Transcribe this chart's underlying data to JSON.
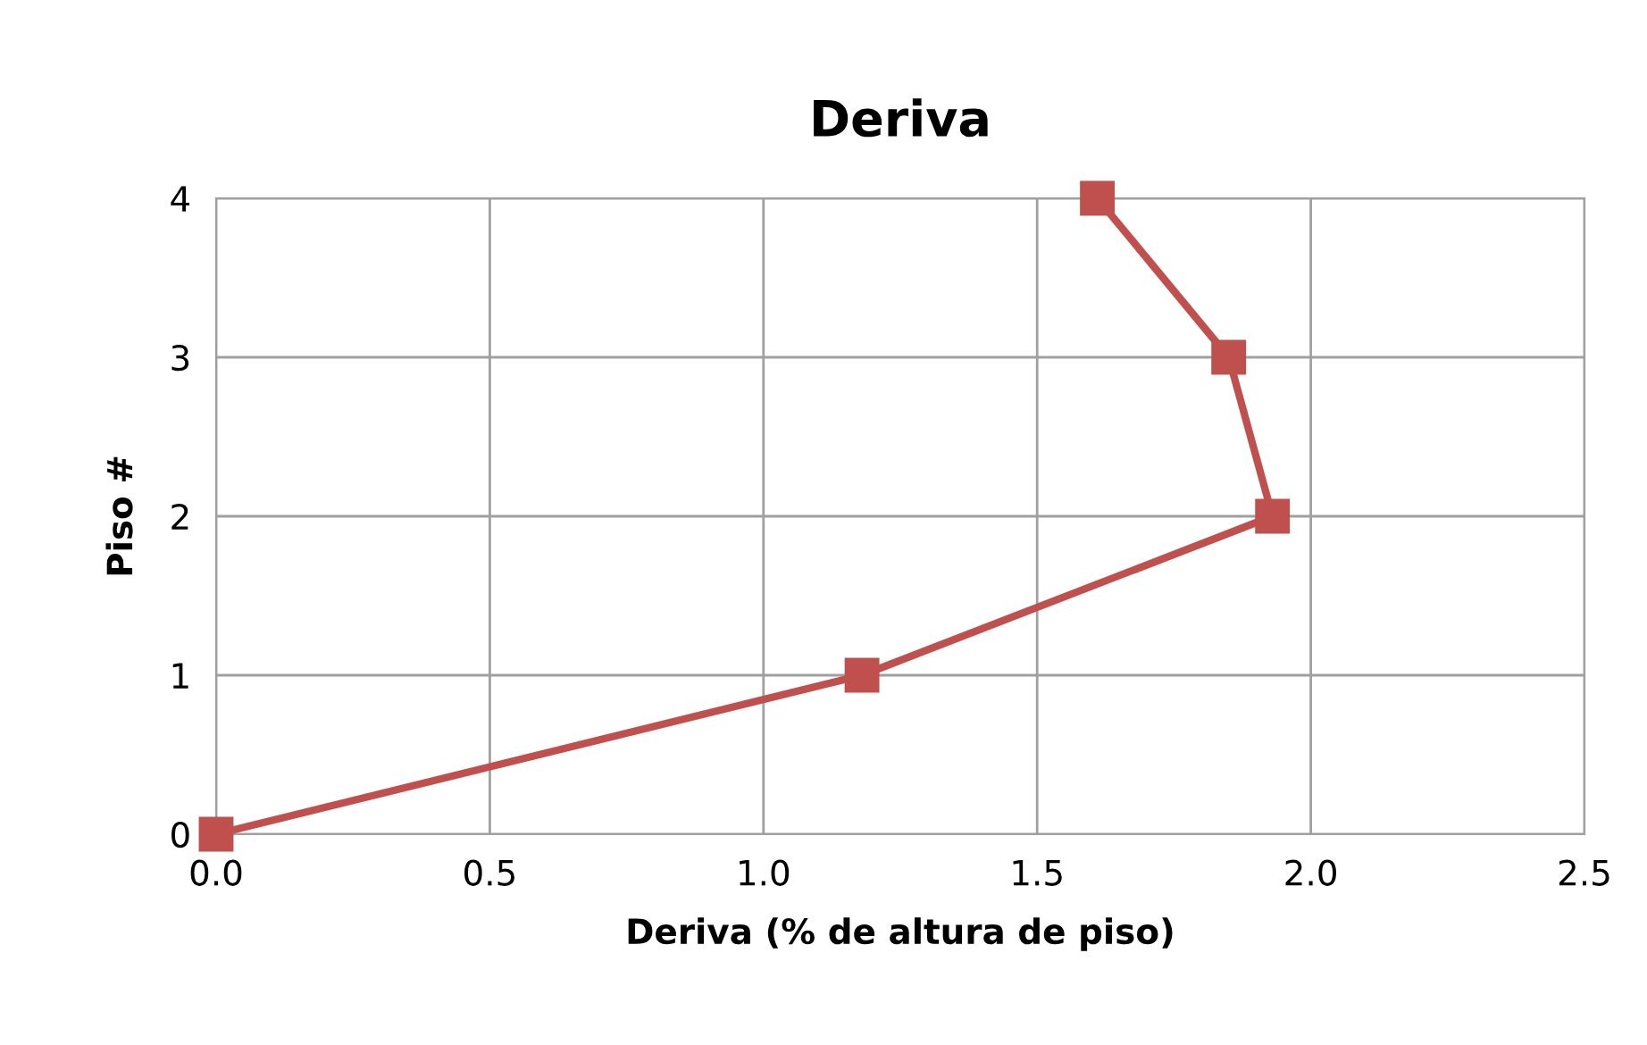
{
  "chart_data": {
    "type": "line",
    "title": "Deriva",
    "xlabel": "Deriva (% de altura de piso)",
    "ylabel": "Piso #",
    "x": [
      0.0,
      1.18,
      1.93,
      1.85,
      1.61
    ],
    "series": [
      {
        "color": "#c0504d",
        "values": [
          0,
          1,
          2,
          3,
          4
        ]
      }
    ],
    "xlim": [
      0,
      2.5
    ],
    "xticks": [
      {
        "value": 0,
        "label": "0.0"
      },
      0.5,
      {
        "value": 1,
        "label": "1.0"
      },
      1.5,
      {
        "value": 2,
        "label": "2.0"
      },
      2.5
    ],
    "ylim": [
      0,
      4
    ],
    "yticks": [
      0,
      1,
      2,
      3,
      4
    ],
    "grid": true,
    "marker": "square",
    "line_style": "solid"
  }
}
